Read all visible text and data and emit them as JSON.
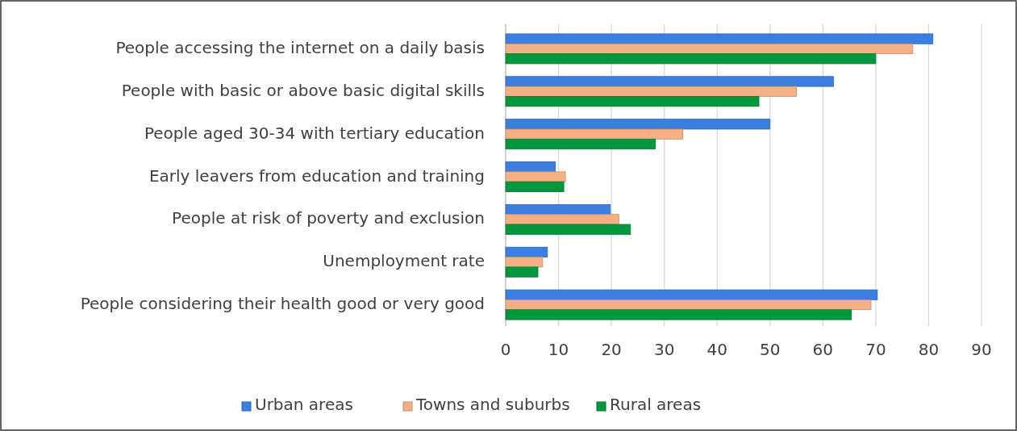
{
  "chart_data": {
    "type": "bar",
    "orientation": "horizontal",
    "categories": [
      "People accessing the internet on a daily basis",
      "People with basic or above basic digital skills",
      "People aged 30-34 with tertiary education",
      "Early leavers from education and training",
      "People at risk of poverty and exclusion",
      "Unemployment rate",
      "People considering their health good or very good"
    ],
    "series": [
      {
        "name": "Urban areas",
        "color": "#3b7fe0",
        "values": [
          80.8,
          62,
          50,
          9.4,
          19.8,
          7.9,
          70.3
        ]
      },
      {
        "name": "Towns and suburbs",
        "color": "#f5b183",
        "values": [
          77,
          55,
          33.5,
          11.3,
          21.4,
          7,
          69.1
        ]
      },
      {
        "name": "Rural areas",
        "color": "#00973d",
        "values": [
          70,
          47.9,
          28.3,
          11,
          23.6,
          6.1,
          65.4
        ]
      }
    ],
    "xlim": [
      0,
      90
    ],
    "xticks": [
      0,
      10,
      20,
      30,
      40,
      50,
      60,
      70,
      80,
      90
    ],
    "grid": "x",
    "legend": "bottom"
  }
}
